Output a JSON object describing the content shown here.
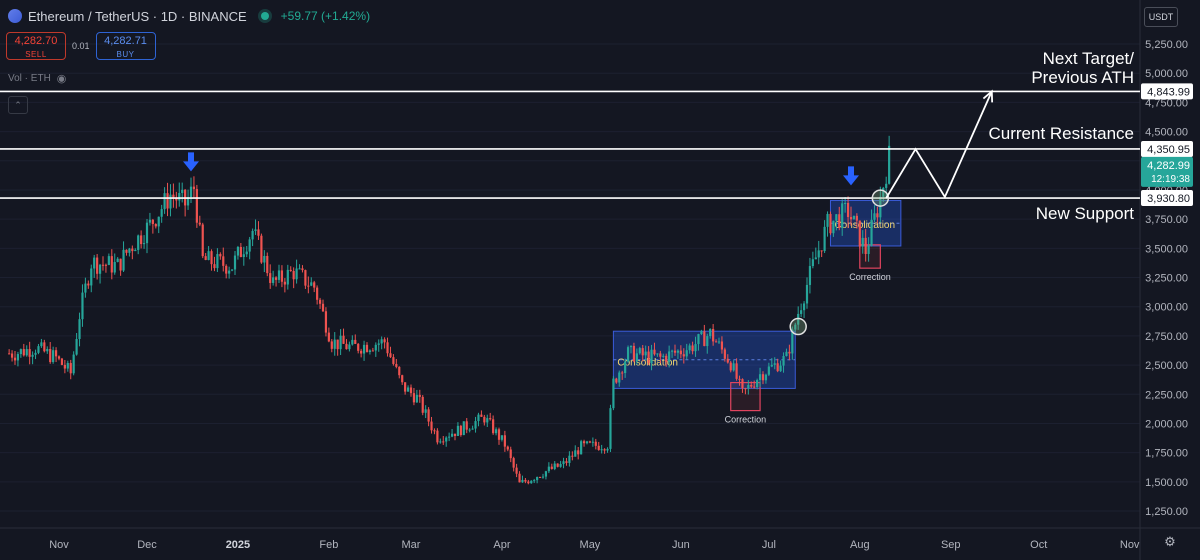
{
  "header": {
    "symbol": "Ethereum / TetherUS · 1D · BINANCE",
    "change": "+59.77 (+1.42%)"
  },
  "trade": {
    "sell_price": "4,282.70",
    "sell_label": "SELL",
    "spread": "0.01",
    "buy_price": "4,282.71",
    "buy_label": "BUY"
  },
  "indicator": {
    "label": "Vol · ETH"
  },
  "currency": "USDT",
  "icons": [
    "ethereum-logo-icon",
    "live-status-icon",
    "eye-off-icon",
    "collapse-icon",
    "gear-icon",
    "blue-down-arrow-icon"
  ],
  "colors": {
    "up": "#26a69a",
    "down": "#ef5350",
    "accent": "#2962ff",
    "bg": "#141722"
  },
  "chart_data": {
    "type": "candlestick",
    "price_axis_labels": [
      "5,250.00",
      "5,000.00",
      "4,750.00",
      "4,500.00",
      "4,250.00",
      "4,000.00",
      "3,750.00",
      "3,500.00",
      "3,250.00",
      "3,000.00",
      "2,750.00",
      "2,500.00",
      "2,250.00",
      "2,000.00",
      "1,750.00",
      "1,500.00",
      "1,250.00"
    ],
    "price_ticks": [
      5250,
      5000,
      4750,
      4500,
      4250,
      4000,
      3750,
      3500,
      3250,
      3000,
      2750,
      2500,
      2250,
      2000,
      1750,
      1500,
      1250
    ],
    "time_axis_labels": [
      "Nov",
      "Dec",
      "2025",
      "Feb",
      "Mar",
      "Apr",
      "May",
      "Jun",
      "Jul",
      "Aug",
      "Sep",
      "Oct",
      "Nov"
    ],
    "ylim": [
      1100,
      5400
    ],
    "price_labels": [
      {
        "value": 4843.99,
        "text": "4,843.99"
      },
      {
        "value": 4350.95,
        "text": "4,350.95"
      },
      {
        "value": 3930.8,
        "text": "3,930.80"
      }
    ],
    "current_price": {
      "value": 4282.99,
      "text": "4,282.99",
      "countdown": "12:19:38"
    },
    "levels": [
      {
        "value": 4843.99,
        "label": "Next Target/\nPrevious ATH"
      },
      {
        "value": 4350.95,
        "label": "Current Resistance"
      },
      {
        "value": 3930.8,
        "label": "New Support"
      }
    ],
    "consolidation_zones": [
      {
        "start": "2025-05-09",
        "end": "2025-07-10",
        "low": 2300,
        "high": 2790,
        "label": "Consolidation"
      },
      {
        "start": "2025-07-22",
        "end": "2025-08-15",
        "low": 3520,
        "high": 3910,
        "label": "Consolidation"
      }
    ],
    "corrections": [
      {
        "start": "2025-06-18",
        "end": "2025-06-28",
        "low": 2110,
        "high": 2350,
        "label": "Correction"
      },
      {
        "start": "2025-08-01",
        "end": "2025-08-08",
        "low": 3330,
        "high": 3530,
        "label": "Correction"
      }
    ],
    "annotations": {
      "breakout_circles": [
        {
          "date": "2025-07-11",
          "price": 2830
        },
        {
          "date": "2025-08-08",
          "price": 3930
        }
      ],
      "down_arrows": [
        {
          "date": "2024-12-16",
          "price": 4150
        },
        {
          "date": "2025-07-29",
          "price": 4030
        }
      ],
      "projection_path": [
        {
          "date": "2025-08-10",
          "price": 3930
        },
        {
          "date": "2025-08-20",
          "price": 4350
        },
        {
          "date": "2025-08-30",
          "price": 3940
        },
        {
          "date": "2025-09-15",
          "price": 4844
        }
      ]
    },
    "path": [
      [
        "2024-10-17",
        2600
      ],
      [
        "2024-10-24",
        2650
      ],
      [
        "2024-10-31",
        2560
      ],
      [
        "2024-11-05",
        2430
      ],
      [
        "2024-11-08",
        2930
      ],
      [
        "2024-11-12",
        3380
      ],
      [
        "2024-11-21",
        3350
      ],
      [
        "2024-11-25",
        3500
      ],
      [
        "2024-12-02",
        3700
      ],
      [
        "2024-12-09",
        3960
      ],
      [
        "2024-12-14",
        3880
      ],
      [
        "2024-12-17",
        4020
      ],
      [
        "2024-12-20",
        3400
      ],
      [
        "2024-12-30",
        3350
      ],
      [
        "2025-01-06",
        3650
      ],
      [
        "2025-01-13",
        3200
      ],
      [
        "2025-01-20",
        3300
      ],
      [
        "2025-01-27",
        3170
      ],
      [
        "2025-02-02",
        2700
      ],
      [
        "2025-02-09",
        2650
      ],
      [
        "2025-02-20",
        2700
      ],
      [
        "2025-02-26",
        2320
      ],
      [
        "2025-03-03",
        2220
      ],
      [
        "2025-03-10",
        1880
      ],
      [
        "2025-03-17",
        1940
      ],
      [
        "2025-03-26",
        2050
      ],
      [
        "2025-04-02",
        1820
      ],
      [
        "2025-04-07",
        1480
      ],
      [
        "2025-04-15",
        1580
      ],
      [
        "2025-04-22",
        1650
      ],
      [
        "2025-04-28",
        1800
      ],
      [
        "2025-05-07",
        1820
      ],
      [
        "2025-05-09",
        2350
      ],
      [
        "2025-05-14",
        2600
      ],
      [
        "2025-05-25",
        2560
      ],
      [
        "2025-06-04",
        2650
      ],
      [
        "2025-06-11",
        2770
      ],
      [
        "2025-06-18",
        2520
      ],
      [
        "2025-06-22",
        2250
      ],
      [
        "2025-06-28",
        2420
      ],
      [
        "2025-07-07",
        2560
      ],
      [
        "2025-07-11",
        2950
      ],
      [
        "2025-07-16",
        3350
      ],
      [
        "2025-07-21",
        3700
      ],
      [
        "2025-07-28",
        3820
      ],
      [
        "2025-08-03",
        3480
      ],
      [
        "2025-08-08",
        3930
      ],
      [
        "2025-08-11",
        4282
      ]
    ]
  }
}
